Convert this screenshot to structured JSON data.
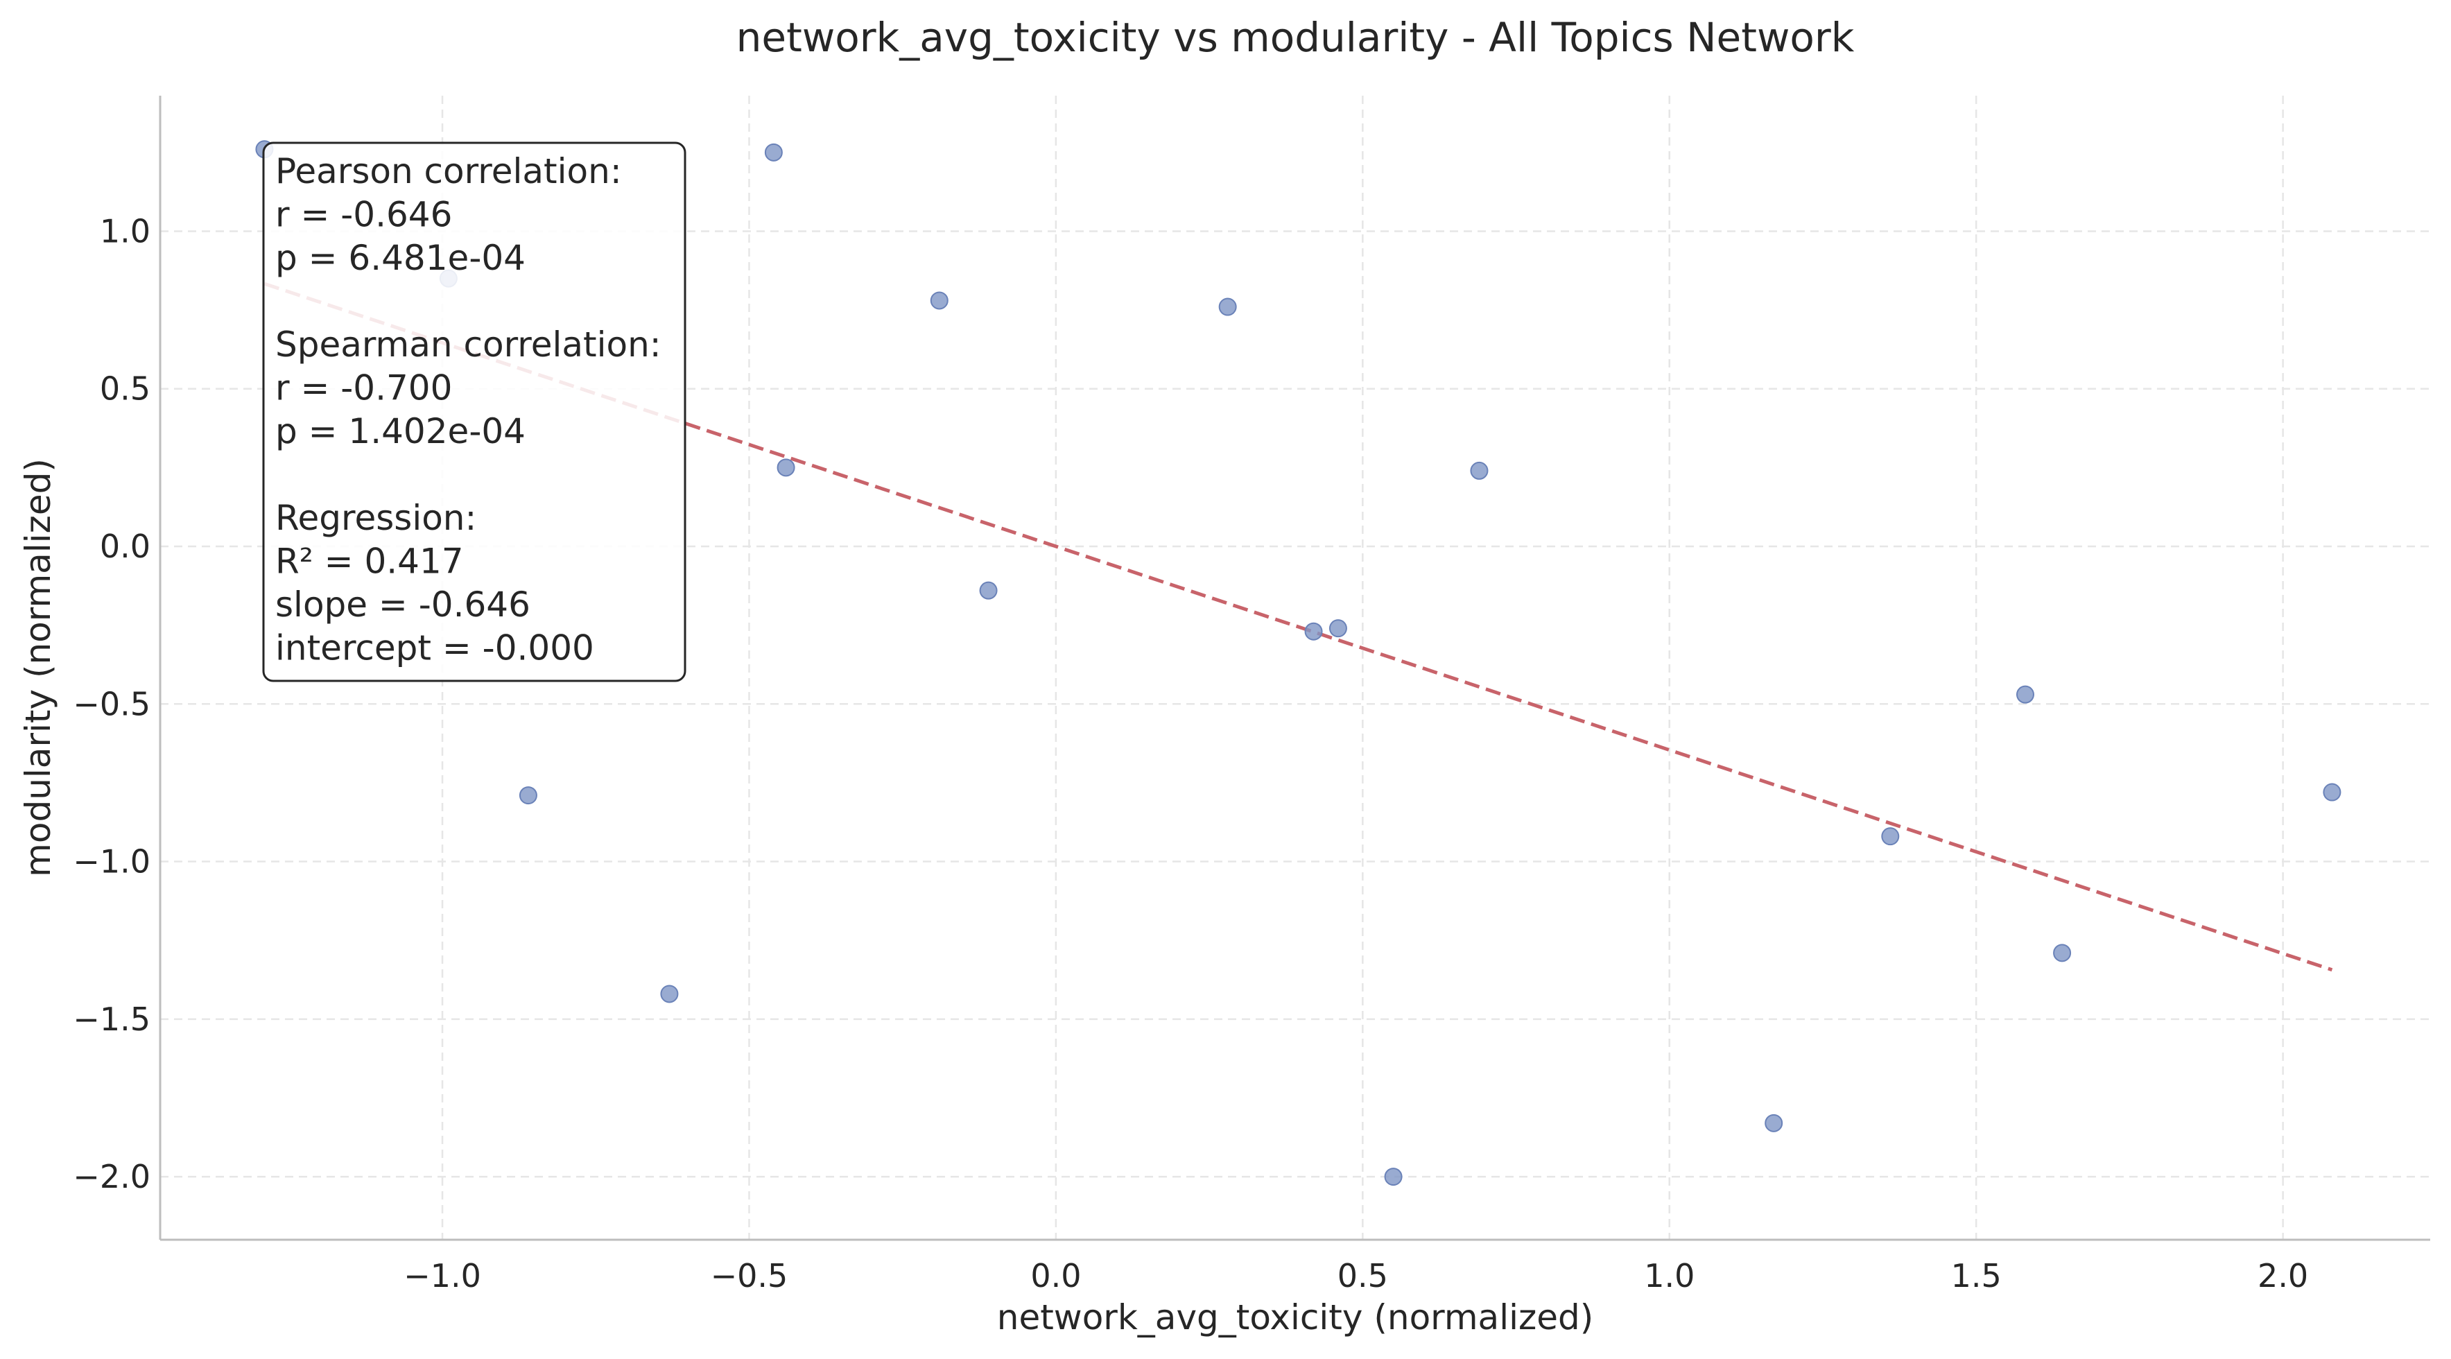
{
  "chart_data": {
    "type": "scatter",
    "title": "network_avg_toxicity vs modularity - All Topics Network",
    "xlabel": "network_avg_toxicity (normalized)",
    "ylabel": "modularity (normalized)",
    "xlim": [
      -1.46,
      2.24
    ],
    "ylim": [
      -2.2,
      1.43
    ],
    "xticks": [
      -1.0,
      -0.5,
      0.0,
      0.5,
      1.0,
      1.5,
      2.0
    ],
    "xtick_labels": [
      "−1.0",
      "−0.5",
      "0.0",
      "0.5",
      "1.0",
      "1.5",
      "2.0"
    ],
    "yticks": [
      1.0,
      0.5,
      0.0,
      -0.5,
      -1.0,
      -1.5,
      -2.0
    ],
    "ytick_labels": [
      "1.0",
      "0.5",
      "0.0",
      "−0.5",
      "−1.0",
      "−1.5",
      "−2.0"
    ],
    "grid": true,
    "point_color": "#7f96c6",
    "line_color": "#c8636a",
    "points": [
      {
        "x": -1.29,
        "y": 1.26
      },
      {
        "x": -0.99,
        "y": 0.85
      },
      {
        "x": -0.46,
        "y": 1.25
      },
      {
        "x": -0.44,
        "y": 0.25
      },
      {
        "x": -0.19,
        "y": 0.78
      },
      {
        "x": -0.11,
        "y": -0.14
      },
      {
        "x": 0.28,
        "y": 0.76
      },
      {
        "x": 0.42,
        "y": -0.27
      },
      {
        "x": 0.46,
        "y": -0.26
      },
      {
        "x": 0.69,
        "y": 0.24
      },
      {
        "x": -0.86,
        "y": -0.79
      },
      {
        "x": -0.63,
        "y": -1.42
      },
      {
        "x": 0.55,
        "y": -2.0
      },
      {
        "x": 1.17,
        "y": -1.83
      },
      {
        "x": 1.36,
        "y": -0.92
      },
      {
        "x": 1.58,
        "y": -0.47
      },
      {
        "x": 1.64,
        "y": -1.29
      },
      {
        "x": 2.08,
        "y": -0.78
      }
    ],
    "regression": {
      "slope": -0.646,
      "intercept": -0.0,
      "x_start": -1.29,
      "x_end": 2.08
    },
    "stats_lines": [
      "Pearson correlation:",
      "  r = -0.646",
      "  p = 6.481e-04",
      "",
      "Spearman correlation:",
      "  r = -0.700",
      "  p = 1.402e-04",
      "",
      "Regression:",
      "  R² = 0.417",
      "  slope = -0.646",
      "  intercept = -0.000"
    ]
  }
}
